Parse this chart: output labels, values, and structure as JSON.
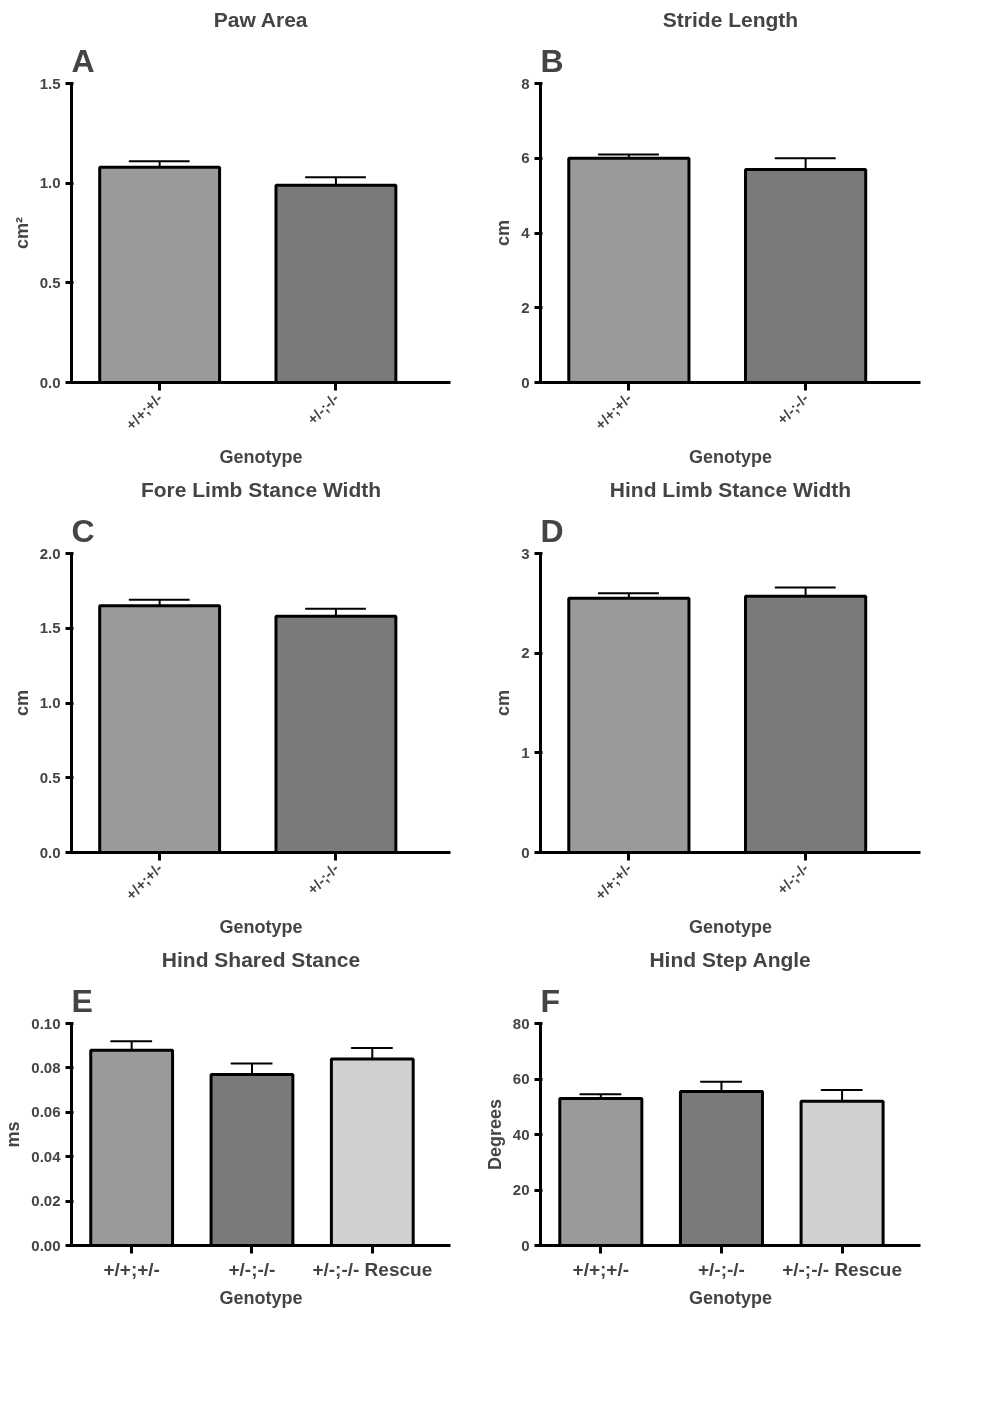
{
  "chart_data": [
    {
      "type": "bar",
      "title": "Paw Area",
      "annotations": [
        "A"
      ],
      "xlabel": "Genotype",
      "ylabel": "cm²",
      "categories": [
        "+/+;+/-",
        "+/-;-/-"
      ],
      "values": [
        1.08,
        0.99
      ],
      "errors": [
        [
          1.08,
          1.11
        ],
        [
          0.99,
          1.03
        ]
      ],
      "colors": [
        "#9a9a9a",
        "#7a7a7a"
      ],
      "ylim": [
        0,
        1.5
      ],
      "yticks": [
        {
          "value": 0,
          "label": "0.0"
        },
        0.5,
        {
          "value": 1,
          "label": "1.0"
        },
        1.5
      ],
      "grid": false
    },
    {
      "type": "bar",
      "title": "Stride Length",
      "annotations": [
        "B"
      ],
      "xlabel": "Genotype",
      "ylabel": "cm",
      "categories": [
        "+/+;+/-",
        "+/-;-/-"
      ],
      "values": [
        6.0,
        5.7
      ],
      "errors": [
        [
          6.0,
          6.1
        ],
        [
          5.7,
          6.0
        ]
      ],
      "colors": [
        "#9a9a9a",
        "#7a7a7a"
      ],
      "ylim": [
        0,
        8
      ],
      "yticks": [
        0,
        2,
        4,
        6,
        8
      ],
      "grid": false
    },
    {
      "type": "bar",
      "title": "Fore Limb Stance Width",
      "annotations": [
        "C"
      ],
      "xlabel": "Genotype",
      "ylabel": "cm",
      "categories": [
        "+/+;+/-",
        "+/-;-/-"
      ],
      "values": [
        1.65,
        1.58
      ],
      "errors": [
        [
          1.65,
          1.69
        ],
        [
          1.58,
          1.63
        ]
      ],
      "colors": [
        "#9a9a9a",
        "#7a7a7a"
      ],
      "ylim": [
        0,
        2
      ],
      "yticks": [
        {
          "value": 0,
          "label": "0.0"
        },
        0.5,
        {
          "value": 1,
          "label": "1.0"
        },
        1.5,
        {
          "value": 2,
          "label": "2.0"
        }
      ],
      "grid": false
    },
    {
      "type": "bar",
      "title": "Hind Limb Stance Width",
      "annotations": [
        "D"
      ],
      "xlabel": "Genotype",
      "ylabel": "cm",
      "categories": [
        "+/+;+/-",
        "+/-;-/-"
      ],
      "values": [
        2.55,
        2.57
      ],
      "errors": [
        [
          2.55,
          2.6
        ],
        [
          2.57,
          2.66
        ]
      ],
      "colors": [
        "#9a9a9a",
        "#7a7a7a"
      ],
      "ylim": [
        0,
        3
      ],
      "yticks": [
        0,
        1,
        2,
        3
      ],
      "grid": false
    },
    {
      "type": "bar",
      "title": "Hind Shared Stance",
      "annotations": [
        "E"
      ],
      "xlabel": "Genotype",
      "ylabel": "ms",
      "categories": [
        "+/+;+/-",
        "+/-;-/-",
        "+/-;-/- Rescue"
      ],
      "values": [
        0.088,
        0.077,
        0.084
      ],
      "errors": [
        [
          0.088,
          0.092
        ],
        [
          0.077,
          0.082
        ],
        [
          0.084,
          0.089
        ]
      ],
      "colors": [
        "#9a9a9a",
        "#7a7a7a",
        "#d0d0d0"
      ],
      "ylim": [
        0,
        0.1
      ],
      "yticks": [
        {
          "value": 0,
          "label": "0.00"
        },
        {
          "value": 0.02,
          "label": "0.02"
        },
        {
          "value": 0.04,
          "label": "0.04"
        },
        {
          "value": 0.06,
          "label": "0.06"
        },
        {
          "value": 0.08,
          "label": "0.08"
        },
        {
          "value": 0.1,
          "label": "0.10"
        }
      ],
      "grid": false
    },
    {
      "type": "bar",
      "title": "Hind Step Angle",
      "annotations": [
        "F"
      ],
      "xlabel": "Genotype",
      "ylabel": "Degrees",
      "categories": [
        "+/+;+/-",
        "+/-;-/-",
        "+/-;-/- Rescue"
      ],
      "values": [
        53,
        55.5,
        52
      ],
      "errors": [
        [
          53,
          54.5
        ],
        [
          55.5,
          59
        ],
        [
          52,
          56
        ]
      ],
      "colors": [
        "#9a9a9a",
        "#7a7a7a",
        "#d0d0d0"
      ],
      "ylim": [
        0,
        80
      ],
      "yticks": [
        0,
        20,
        40,
        60,
        80
      ],
      "grid": false
    }
  ]
}
